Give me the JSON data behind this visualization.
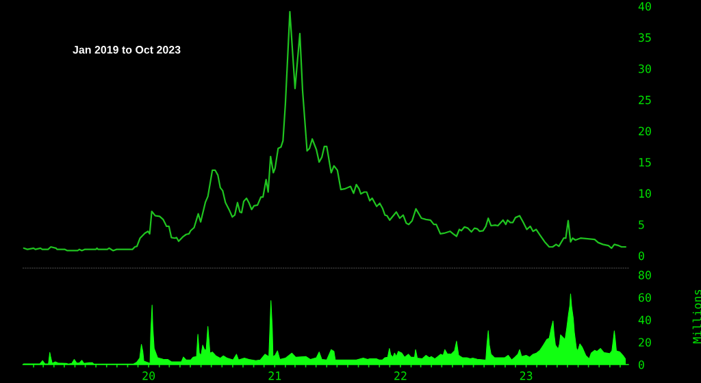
{
  "chart_data": [
    {
      "type": "line",
      "annotations": [
        "Jan 2019 to Oct 2023"
      ],
      "color": "#20c420",
      "x": [
        "2019-01-03",
        "2019-01-14",
        "2019-02-01",
        "2019-02-06",
        "2019-02-21",
        "2019-02-26",
        "2019-03-15",
        "2019-03-23",
        "2019-04-07",
        "2019-04-10",
        "2019-05-03",
        "2019-05-10",
        "2019-06-09",
        "2019-06-14",
        "2019-06-21",
        "2019-06-29",
        "2019-08-01",
        "2019-08-04",
        "2019-08-07",
        "2019-09-03",
        "2019-09-08",
        "2019-09-20",
        "2019-09-30",
        "2019-11-15",
        "2019-11-22",
        "2019-11-28",
        "2019-12-07",
        "2019-12-21",
        "2019-12-30",
        "2020-01-04",
        "2020-01-10",
        "2020-01-20",
        "2020-02-02",
        "2020-02-12",
        "2020-02-22",
        "2020-02-29",
        "2020-03-07",
        "2020-03-17",
        "2020-03-22",
        "2020-03-28",
        "2020-04-09",
        "2020-04-19",
        "2020-04-27",
        "2020-05-02",
        "2020-05-12",
        "2020-05-24",
        "2020-05-31",
        "2020-06-14",
        "2020-06-21",
        "2020-07-04",
        "2020-07-12",
        "2020-07-20",
        "2020-07-27",
        "2020-08-03",
        "2020-08-11",
        "2020-08-23",
        "2020-08-31",
        "2020-09-07",
        "2020-09-15",
        "2020-09-22",
        "2020-09-27",
        "2020-10-03",
        "2020-10-11",
        "2020-10-18",
        "2020-10-26",
        "2020-11-02",
        "2020-11-12",
        "2020-11-22",
        "2020-11-28",
        "2020-12-07",
        "2020-12-13",
        "2020-12-20",
        "2020-12-28",
        "2021-01-02",
        "2021-01-11",
        "2021-01-19",
        "2021-01-25",
        "2021-02-01",
        "2021-02-14",
        "2021-03-01",
        "2021-03-15",
        "2021-03-23",
        "2021-04-05",
        "2021-04-12",
        "2021-04-20",
        "2021-05-02",
        "2021-05-10",
        "2021-05-18",
        "2021-05-25",
        "2021-06-01",
        "2021-06-14",
        "2021-06-22",
        "2021-07-02",
        "2021-07-12",
        "2021-07-23",
        "2021-08-09",
        "2021-08-18",
        "2021-08-26",
        "2021-09-03",
        "2021-09-08",
        "2021-09-18",
        "2021-09-25",
        "2021-10-04",
        "2021-10-11",
        "2021-10-24",
        "2021-11-02",
        "2021-11-10",
        "2021-11-17",
        "2021-11-23",
        "2021-12-01",
        "2021-12-20",
        "2021-12-30",
        "2022-01-09",
        "2022-01-18",
        "2022-01-25",
        "2022-02-04",
        "2022-02-15",
        "2022-03-03",
        "2022-03-16",
        "2022-03-29",
        "2022-04-08",
        "2022-04-15",
        "2022-04-27",
        "2022-05-08",
        "2022-05-25",
        "2022-06-03",
        "2022-06-13",
        "2022-06-21",
        "2022-06-27",
        "2022-07-06",
        "2022-07-16",
        "2022-07-26",
        "2022-08-04",
        "2022-08-12",
        "2022-08-19",
        "2022-08-29",
        "2022-09-06",
        "2022-09-13",
        "2022-09-21",
        "2022-10-03",
        "2022-10-11",
        "2022-10-26",
        "2022-11-03",
        "2022-11-08",
        "2022-11-16",
        "2022-11-23",
        "2022-12-01",
        "2022-12-13",
        "2022-12-23",
        "2023-01-03",
        "2023-01-13",
        "2023-01-21",
        "2023-01-30",
        "2023-02-10",
        "2023-02-24",
        "2023-03-09",
        "2023-03-19",
        "2023-03-29",
        "2023-04-06",
        "2023-04-20",
        "2023-04-26",
        "2023-05-03",
        "2023-05-10",
        "2023-05-16",
        "2023-05-24",
        "2023-06-08",
        "2023-07-19",
        "2023-07-29",
        "2023-08-12",
        "2023-08-28",
        "2023-09-06",
        "2023-09-14",
        "2023-09-27",
        "2023-10-05",
        "2023-10-17"
      ],
      "values": [
        1.2,
        1.0,
        1.2,
        1.0,
        1.2,
        1.0,
        1.0,
        1.4,
        1.2,
        1.0,
        1.0,
        0.8,
        0.8,
        1.0,
        0.8,
        1.0,
        1.0,
        1.2,
        1.0,
        1.0,
        1.2,
        0.8,
        1.0,
        1.0,
        1.4,
        1.5,
        2.8,
        3.6,
        3.9,
        3.5,
        7.1,
        6.4,
        6.3,
        5.8,
        4.7,
        4.7,
        2.9,
        2.8,
        2.9,
        2.3,
        3.0,
        3.4,
        3.5,
        4.0,
        4.5,
        6.7,
        5.4,
        8.6,
        9.5,
        13.7,
        13.7,
        12.9,
        10.9,
        10.4,
        8.5,
        7.2,
        6.2,
        6.5,
        8.5,
        7.0,
        6.9,
        8.7,
        9.2,
        8.5,
        7.4,
        8.0,
        8.1,
        9.4,
        9.4,
        12.2,
        10.2,
        15.9,
        13.3,
        14.0,
        17.2,
        17.4,
        18.4,
        24.3,
        39.1,
        26.8,
        35.6,
        26.4,
        16.8,
        17.2,
        18.7,
        17.0,
        15.0,
        15.8,
        17.5,
        17.5,
        13.3,
        14.4,
        13.7,
        10.6,
        10.7,
        11.1,
        10.0,
        11.4,
        10.7,
        9.9,
        10.2,
        10.2,
        8.8,
        9.2,
        7.9,
        8.4,
        7.6,
        6.5,
        6.4,
        5.7,
        7.0,
        6.0,
        6.5,
        5.2,
        5.0,
        5.6,
        7.5,
        6.0,
        5.8,
        5.7,
        5.0,
        5.0,
        3.5,
        3.6,
        3.9,
        3.5,
        3.1,
        4.2,
        4.0,
        4.6,
        4.4,
        3.8,
        4.4,
        4.3,
        3.9,
        4.0,
        4.7,
        6.0,
        4.8,
        4.9,
        4.8,
        5.7,
        5.0,
        5.7,
        5.3,
        5.3,
        6.1,
        6.4,
        5.4,
        4.2,
        4.7,
        3.9,
        4.2,
        3.3,
        2.2,
        1.4,
        1.4,
        1.8,
        1.5,
        2.8,
        2.8,
        5.6,
        2.2,
        2.8,
        2.5,
        2.8,
        2.6,
        2.1,
        1.8,
        1.6,
        1.2,
        1.8,
        1.6,
        1.4,
        1.4
      ],
      "xlim": [
        "2019-01-01",
        "2023-10-25"
      ],
      "ylim": [
        -2,
        40
      ],
      "yticks": [
        0,
        5,
        10,
        15,
        20,
        25,
        30,
        35,
        40
      ],
      "tick_labels": "y"
    },
    {
      "type": "area",
      "ylabel": "Millions",
      "color": "#11ff11",
      "x": [
        "2019-01-03",
        "2019-02-19",
        "2019-02-27",
        "2019-03-06",
        "2019-03-16",
        "2019-03-20",
        "2019-03-23",
        "2019-03-27",
        "2019-04-05",
        "2019-04-13",
        "2019-05-07",
        "2019-05-13",
        "2019-05-23",
        "2019-05-30",
        "2019-06-06",
        "2019-06-14",
        "2019-06-21",
        "2019-06-27",
        "2019-07-12",
        "2019-07-22",
        "2019-07-26",
        "2019-11-18",
        "2019-11-27",
        "2019-12-06",
        "2019-12-11",
        "2019-12-15",
        "2019-12-18",
        "2020-01-05",
        "2020-01-07",
        "2020-01-11",
        "2020-01-13",
        "2020-01-17",
        "2020-01-27",
        "2020-02-12",
        "2020-02-26",
        "2020-03-07",
        "2020-04-05",
        "2020-04-11",
        "2020-04-19",
        "2020-05-02",
        "2020-05-09",
        "2020-05-19",
        "2020-05-23",
        "2020-05-27",
        "2020-06-01",
        "2020-06-06",
        "2020-06-11",
        "2020-06-16",
        "2020-06-21",
        "2020-06-24",
        "2020-06-27",
        "2020-07-04",
        "2020-07-14",
        "2020-07-27",
        "2020-08-05",
        "2020-08-16",
        "2020-09-02",
        "2020-09-12",
        "2020-09-18",
        "2020-10-05",
        "2020-10-18",
        "2020-11-07",
        "2020-11-20",
        "2020-12-04",
        "2020-12-15",
        "2020-12-18",
        "2020-12-21",
        "2020-12-25",
        "2020-12-27",
        "2021-01-02",
        "2021-01-09",
        "2021-01-16",
        "2021-02-01",
        "2021-02-20",
        "2021-03-03",
        "2021-04-02",
        "2021-04-15",
        "2021-05-02",
        "2021-05-10",
        "2021-05-18",
        "2021-06-01",
        "2021-06-14",
        "2021-06-22",
        "2021-06-26",
        "2021-07-30",
        "2021-08-26",
        "2021-09-15",
        "2021-09-28",
        "2021-10-04",
        "2021-10-24",
        "2021-10-31",
        "2021-11-10",
        "2021-11-17",
        "2021-11-25",
        "2021-11-30",
        "2021-12-04",
        "2021-12-10",
        "2021-12-15",
        "2021-12-20",
        "2021-12-26",
        "2022-01-05",
        "2022-01-13",
        "2022-01-24",
        "2022-02-01",
        "2022-02-11",
        "2022-02-14",
        "2022-02-19",
        "2022-03-05",
        "2022-03-16",
        "2022-03-26",
        "2022-04-01",
        "2022-04-11",
        "2022-04-28",
        "2022-05-05",
        "2022-05-10",
        "2022-05-17",
        "2022-05-28",
        "2022-06-07",
        "2022-06-13",
        "2022-06-19",
        "2022-06-30",
        "2022-07-13",
        "2022-07-23",
        "2022-07-30",
        "2022-08-12",
        "2022-09-01",
        "2022-09-06",
        "2022-09-09",
        "2022-09-13",
        "2022-09-16",
        "2022-09-21",
        "2022-10-01",
        "2022-10-31",
        "2022-11-10",
        "2022-11-20",
        "2022-11-29",
        "2022-12-08",
        "2022-12-13",
        "2022-12-19",
        "2023-01-01",
        "2023-01-11",
        "2023-01-21",
        "2023-01-31",
        "2023-02-10",
        "2023-02-20",
        "2023-03-02",
        "2023-03-09",
        "2023-03-15",
        "2023-03-20",
        "2023-03-23",
        "2023-03-27",
        "2023-04-04",
        "2023-04-08",
        "2023-04-11",
        "2023-04-24",
        "2023-04-29",
        "2023-05-04",
        "2023-05-08",
        "2023-05-10",
        "2023-05-13",
        "2023-05-18",
        "2023-05-21",
        "2023-05-27",
        "2023-05-31",
        "2023-06-06",
        "2023-06-13",
        "2023-06-23",
        "2023-07-03",
        "2023-07-09",
        "2023-07-19",
        "2023-07-26",
        "2023-08-05",
        "2023-08-15",
        "2023-08-25",
        "2023-09-01",
        "2023-09-07",
        "2023-09-11",
        "2023-09-14",
        "2023-09-17",
        "2023-09-20",
        "2023-09-30",
        "2023-10-09",
        "2023-10-16"
      ],
      "values": [
        0.6,
        0.6,
        3.5,
        0.6,
        0.6,
        10.8,
        6.1,
        1.0,
        2.4,
        1.4,
        1.0,
        0.4,
        1.0,
        4.5,
        1.4,
        1.4,
        3.7,
        1.0,
        1.6,
        1.6,
        0.4,
        0.4,
        2.0,
        5.7,
        18.0,
        11.8,
        3.1,
        1.0,
        27.6,
        53.0,
        34.0,
        14.3,
        6.1,
        4.7,
        4.5,
        2.4,
        2.4,
        6.7,
        4.1,
        4.1,
        6.5,
        7.1,
        26.9,
        10.2,
        8.2,
        17.3,
        13.3,
        13.3,
        34.0,
        22.4,
        10.2,
        11.2,
        7.8,
        5.7,
        7.8,
        5.7,
        4.1,
        9.2,
        4.1,
        5.7,
        4.5,
        3.5,
        4.1,
        9.2,
        7.1,
        32.0,
        57.0,
        32.0,
        7.1,
        8.2,
        12.2,
        4.5,
        5.7,
        10.2,
        6.5,
        7.1,
        4.5,
        6.1,
        11.2,
        4.5,
        4.1,
        13.3,
        11.8,
        4.1,
        4.1,
        4.1,
        5.7,
        4.5,
        5.1,
        5.1,
        4.1,
        4.1,
        6.1,
        6.5,
        14.3,
        8.6,
        6.5,
        10.2,
        7.1,
        11.8,
        10.2,
        6.5,
        9.2,
        6.5,
        6.5,
        13.3,
        5.7,
        5.1,
        8.2,
        6.1,
        7.1,
        5.1,
        9.2,
        8.2,
        13.3,
        9.6,
        9.2,
        12.2,
        20.8,
        8.2,
        6.1,
        6.1,
        5.1,
        5.7,
        4.7,
        4.1,
        4.1,
        17.3,
        30.2,
        17.7,
        9.2,
        6.1,
        6.1,
        8.2,
        4.1,
        6.5,
        9.2,
        13.3,
        7.1,
        8.2,
        6.5,
        9.2,
        10.2,
        12.7,
        17.3,
        22.4,
        23.5,
        32.7,
        38.8,
        27.6,
        17.3,
        13.9,
        18.4,
        26.5,
        22.4,
        32.7,
        44.9,
        53.0,
        62.9,
        52.0,
        40.8,
        28.6,
        14.3,
        12.2,
        18.4,
        15.3,
        8.2,
        5.1,
        10.2,
        12.7,
        11.8,
        14.3,
        10.6,
        10.2,
        9.8,
        12.2,
        22.0,
        30.0,
        22.0,
        12.2,
        11.2,
        8.2,
        5.1
      ],
      "xlim": [
        "2019-01-01",
        "2023-10-25"
      ],
      "ylim": [
        0,
        86
      ],
      "yticks": [
        0,
        20,
        40,
        60,
        80
      ],
      "xticks": [
        {
          "value": "2019-02",
          "label": null
        },
        {
          "value": "2019-03",
          "label": null
        },
        {
          "value": "2019-04",
          "label": null
        },
        {
          "value": "2019-05",
          "label": null
        },
        {
          "value": "2019-06",
          "label": null
        },
        {
          "value": "2019-07",
          "label": null
        },
        {
          "value": "2019-08",
          "label": null
        },
        {
          "value": "2019-09",
          "label": null
        },
        {
          "value": "2019-10",
          "label": null
        },
        {
          "value": "2019-11",
          "label": null
        },
        {
          "value": "2019-12",
          "label": null
        },
        {
          "value": "2020-01",
          "label": "20"
        },
        {
          "value": "2020-02",
          "label": null
        },
        {
          "value": "2020-03",
          "label": null
        },
        {
          "value": "2020-04",
          "label": null
        },
        {
          "value": "2020-05",
          "label": null
        },
        {
          "value": "2020-06",
          "label": null
        },
        {
          "value": "2020-07",
          "label": null
        },
        {
          "value": "2020-08",
          "label": null
        },
        {
          "value": "2020-09",
          "label": null
        },
        {
          "value": "2020-10",
          "label": null
        },
        {
          "value": "2020-11",
          "label": null
        },
        {
          "value": "2020-12",
          "label": null
        },
        {
          "value": "2021-01",
          "label": "21"
        },
        {
          "value": "2021-02",
          "label": null
        },
        {
          "value": "2021-03",
          "label": null
        },
        {
          "value": "2021-04",
          "label": null
        },
        {
          "value": "2021-05",
          "label": null
        },
        {
          "value": "2021-06",
          "label": null
        },
        {
          "value": "2021-07",
          "label": null
        },
        {
          "value": "2021-08",
          "label": null
        },
        {
          "value": "2021-09",
          "label": null
        },
        {
          "value": "2021-10",
          "label": null
        },
        {
          "value": "2021-11",
          "label": null
        },
        {
          "value": "2021-12",
          "label": null
        },
        {
          "value": "2022-01",
          "label": "22"
        },
        {
          "value": "2022-02",
          "label": null
        },
        {
          "value": "2022-03",
          "label": null
        },
        {
          "value": "2022-04",
          "label": null
        },
        {
          "value": "2022-05",
          "label": null
        },
        {
          "value": "2022-06",
          "label": null
        },
        {
          "value": "2022-07",
          "label": null
        },
        {
          "value": "2022-08",
          "label": null
        },
        {
          "value": "2022-09",
          "label": null
        },
        {
          "value": "2022-10",
          "label": null
        },
        {
          "value": "2022-11",
          "label": null
        },
        {
          "value": "2022-12",
          "label": null
        },
        {
          "value": "2023-01",
          "label": "23"
        },
        {
          "value": "2023-02",
          "label": null
        },
        {
          "value": "2023-03",
          "label": null
        },
        {
          "value": "2023-04",
          "label": null
        },
        {
          "value": "2023-05",
          "label": null
        },
        {
          "value": "2023-06",
          "label": null
        },
        {
          "value": "2023-07",
          "label": null
        },
        {
          "value": "2023-08",
          "label": null
        },
        {
          "value": "2023-09",
          "label": null
        },
        {
          "value": "2023-10",
          "label": null
        }
      ]
    }
  ]
}
